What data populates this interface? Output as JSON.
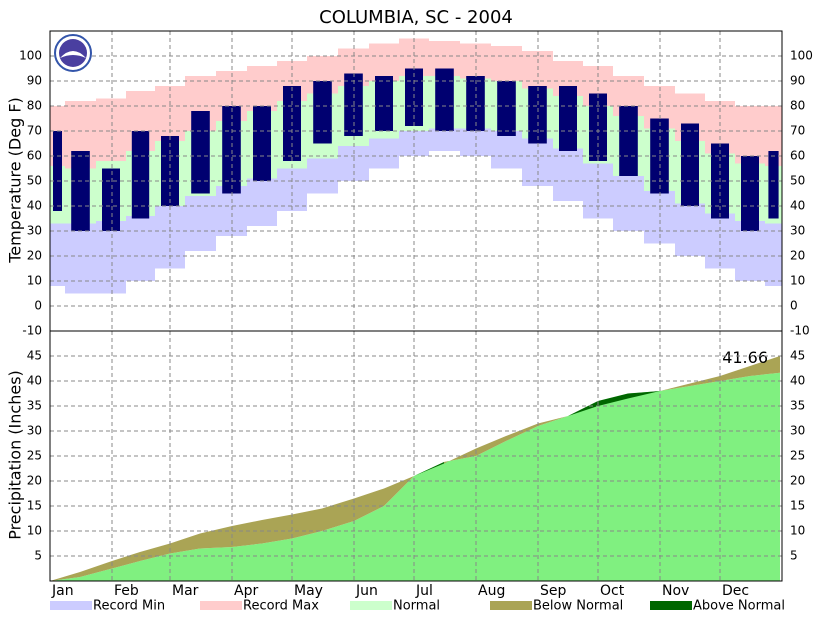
{
  "chart_data": [
    {
      "type": "temperature-range",
      "title": "COLUMBIA, SC - 2004",
      "y_label": "Temperature (Deg F)",
      "x": [
        1,
        16,
        32,
        46,
        61,
        76,
        92,
        107,
        122,
        137,
        153,
        168,
        183,
        198,
        214,
        229,
        245,
        260,
        275,
        290,
        306,
        321,
        336,
        351,
        366
      ],
      "xlim": [
        1,
        367
      ],
      "xticks": [
        1,
        32,
        61,
        92,
        122,
        153,
        183,
        214,
        245,
        275,
        306,
        336
      ],
      "ylim": [
        -10,
        110
      ],
      "yticks": [
        -10,
        0,
        10,
        20,
        30,
        40,
        50,
        60,
        70,
        80,
        90,
        100
      ],
      "grid": true,
      "series": [
        {
          "name": "Record Min",
          "color": "#ccccff",
          "values": [
            8,
            5,
            5,
            10,
            15,
            22,
            28,
            32,
            38,
            45,
            50,
            55,
            60,
            62,
            60,
            55,
            48,
            42,
            35,
            30,
            25,
            20,
            15,
            10,
            8
          ]
        },
        {
          "name": "Record Max",
          "color": "#ffcccc",
          "values": [
            80,
            82,
            83,
            86,
            88,
            92,
            94,
            96,
            98,
            100,
            103,
            105,
            107,
            106,
            105,
            104,
            102,
            98,
            96,
            92,
            88,
            85,
            82,
            80,
            80
          ]
        },
        {
          "name": "Normal",
          "color": "#ccffcc",
          "low": [
            33,
            33,
            34,
            36,
            40,
            44,
            48,
            51,
            55,
            59,
            64,
            67,
            70,
            71,
            71,
            70,
            67,
            63,
            57,
            52,
            46,
            41,
            37,
            34,
            33
          ],
          "high": [
            56,
            55,
            58,
            62,
            66,
            70,
            74,
            78,
            82,
            85,
            88,
            90,
            92,
            92,
            91,
            90,
            87,
            84,
            80,
            76,
            71,
            66,
            61,
            57,
            56
          ]
        }
      ],
      "observed": {
        "color": "#000070",
        "low": [
          38,
          30,
          30,
          35,
          40,
          45,
          45,
          50,
          58,
          65,
          68,
          70,
          72,
          70,
          70,
          68,
          65,
          62,
          58,
          52,
          45,
          40,
          35,
          30,
          35
        ],
        "high": [
          70,
          62,
          55,
          70,
          68,
          78,
          80,
          80,
          88,
          90,
          93,
          92,
          95,
          95,
          92,
          90,
          88,
          88,
          85,
          80,
          75,
          73,
          65,
          60,
          62
        ]
      }
    },
    {
      "type": "precipitation-area",
      "y_label": "Precipitation (Inches)",
      "x": [
        1,
        16,
        32,
        46,
        61,
        76,
        92,
        107,
        122,
        137,
        153,
        168,
        183,
        198,
        214,
        229,
        245,
        260,
        275,
        290,
        306,
        321,
        336,
        351,
        366
      ],
      "xlim": [
        1,
        367
      ],
      "xticks": [
        {
          "value": 1,
          "label": "Jan"
        },
        {
          "value": 32,
          "label": "Feb"
        },
        {
          "value": 61,
          "label": "Mar"
        },
        {
          "value": 92,
          "label": "Apr"
        },
        {
          "value": 122,
          "label": "May"
        },
        {
          "value": 153,
          "label": "Jun"
        },
        {
          "value": 183,
          "label": "Jul"
        },
        {
          "value": 214,
          "label": "Aug"
        },
        {
          "value": 245,
          "label": "Sep"
        },
        {
          "value": 275,
          "label": "Oct"
        },
        {
          "value": 306,
          "label": "Nov"
        },
        {
          "value": 336,
          "label": "Dec"
        }
      ],
      "ylim": [
        0,
        50
      ],
      "yticks": [
        5,
        10,
        15,
        20,
        25,
        30,
        35,
        40,
        45
      ],
      "grid": true,
      "actual": {
        "color": "#80f080",
        "values": [
          0,
          0.8,
          2.5,
          4,
          5.5,
          6.5,
          6.8,
          7.5,
          8.5,
          10,
          12,
          15,
          21,
          23.8,
          25,
          28,
          31,
          33,
          36,
          37.5,
          38,
          39,
          40,
          41,
          41.66
        ]
      },
      "normal": [
        0,
        1.8,
        4,
        5.8,
        7.5,
        9.5,
        11,
        12.2,
        13.3,
        14.5,
        16.5,
        18.5,
        21,
        23.5,
        26.5,
        29,
        31.5,
        33,
        35,
        36.5,
        38,
        39.5,
        41,
        43,
        45
      ],
      "series": [
        {
          "name": "Below Normal",
          "color": "#aaa455"
        },
        {
          "name": "Above Normal",
          "color": "#006600"
        }
      ],
      "annotation": "41.66"
    }
  ]
}
